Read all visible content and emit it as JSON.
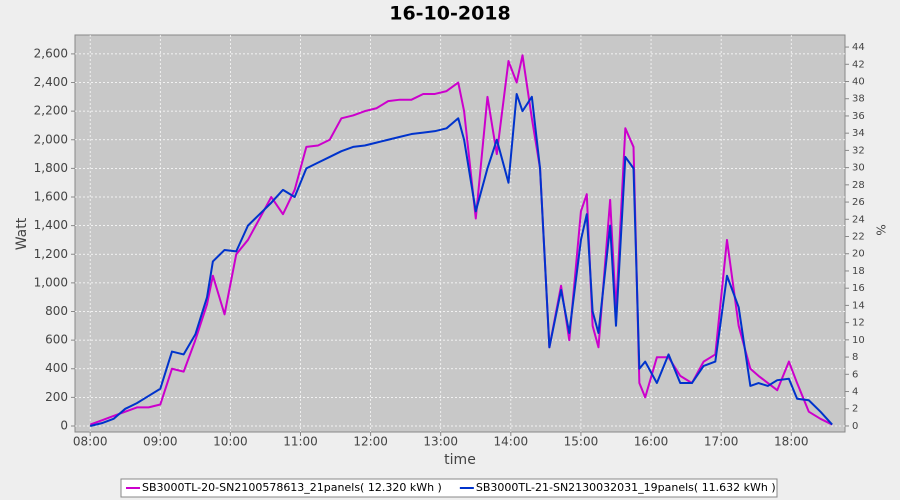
{
  "chart_data": {
    "type": "line",
    "title": "16-10-2018",
    "x_label": "time",
    "y_label": "Watt",
    "y2_label": "%",
    "x": [
      "08:00",
      "08:10",
      "08:20",
      "08:30",
      "08:40",
      "08:50",
      "09:00",
      "09:10",
      "09:20",
      "09:30",
      "09:40",
      "09:45",
      "09:55",
      "10:05",
      "10:15",
      "10:25",
      "10:35",
      "10:45",
      "10:55",
      "11:05",
      "11:15",
      "11:25",
      "11:35",
      "11:45",
      "11:55",
      "12:05",
      "12:15",
      "12:25",
      "12:35",
      "12:45",
      "12:55",
      "13:05",
      "13:15",
      "13:20",
      "13:30",
      "13:40",
      "13:48",
      "13:58",
      "14:05",
      "14:10",
      "14:18",
      "14:25",
      "14:33",
      "14:43",
      "14:50",
      "15:00",
      "15:05",
      "15:10",
      "15:15",
      "15:25",
      "15:30",
      "15:38",
      "15:45",
      "15:50",
      "15:55",
      "16:05",
      "16:15",
      "16:25",
      "16:35",
      "16:45",
      "16:55",
      "17:05",
      "17:15",
      "17:25",
      "17:32",
      "17:40",
      "17:48",
      "17:58",
      "18:05",
      "18:15",
      "18:25",
      "18:35"
    ],
    "series": [
      {
        "name": "SB3000TL-20-SN2100578613_21panels( 12.320 kWh )",
        "color": "#cc00cc",
        "values": [
          10,
          40,
          70,
          100,
          130,
          130,
          150,
          400,
          380,
          600,
          850,
          1050,
          780,
          1200,
          1300,
          1450,
          1600,
          1480,
          1650,
          1950,
          1960,
          2000,
          2150,
          2170,
          2200,
          2220,
          2270,
          2280,
          2280,
          2320,
          2320,
          2340,
          2400,
          2200,
          1450,
          2300,
          1900,
          2550,
          2400,
          2590,
          2150,
          1800,
          550,
          980,
          600,
          1500,
          1620,
          700,
          550,
          1580,
          800,
          2080,
          1950,
          300,
          200,
          480,
          480,
          350,
          300,
          450,
          500,
          1300,
          700,
          400,
          350,
          300,
          250,
          450,
          300,
          100,
          50,
          10
        ]
      },
      {
        "name": "SB3000TL-21-SN2130032031_19panels( 11.632 kWh )",
        "color": "#0033cc",
        "values": [
          0,
          20,
          50,
          120,
          160,
          210,
          260,
          520,
          500,
          640,
          900,
          1150,
          1230,
          1220,
          1400,
          1480,
          1560,
          1650,
          1600,
          1800,
          1840,
          1880,
          1920,
          1950,
          1960,
          1980,
          2000,
          2020,
          2040,
          2050,
          2060,
          2080,
          2150,
          2000,
          1500,
          1800,
          2000,
          1700,
          2320,
          2200,
          2300,
          1800,
          550,
          950,
          650,
          1300,
          1480,
          800,
          650,
          1400,
          700,
          1880,
          1800,
          400,
          450,
          300,
          500,
          300,
          300,
          420,
          450,
          1050,
          830,
          280,
          300,
          280,
          320,
          330,
          190,
          180,
          100,
          10
        ]
      }
    ],
    "xlim": [
      "07:47",
      "18:46"
    ],
    "xticks": [
      "08:00",
      "09:00",
      "10:00",
      "11:00",
      "12:00",
      "13:00",
      "14:00",
      "15:00",
      "16:00",
      "17:00",
      "18:00"
    ],
    "ylim": [
      -42,
      2732
    ],
    "yticks": [
      0,
      200,
      400,
      600,
      800,
      {
        "value": 1000,
        "label": "1,000"
      },
      {
        "value": 1200,
        "label": "1,200"
      },
      {
        "value": 1400,
        "label": "1,400"
      },
      {
        "value": 1600,
        "label": "1,600"
      },
      {
        "value": 1800,
        "label": "1,800"
      },
      {
        "value": 2000,
        "label": "2,000"
      },
      {
        "value": 2200,
        "label": "2,200"
      },
      {
        "value": 2400,
        "label": "2,400"
      },
      {
        "value": 2600,
        "label": "2,600"
      }
    ],
    "y2lim": [
      -0.7,
      45.4
    ],
    "y2ticks": [
      0,
      2,
      4,
      6,
      8,
      10,
      12,
      14,
      16,
      18,
      20,
      22,
      24,
      26,
      28,
      30,
      32,
      34,
      36,
      38,
      40,
      42,
      44
    ],
    "grid": true
  }
}
